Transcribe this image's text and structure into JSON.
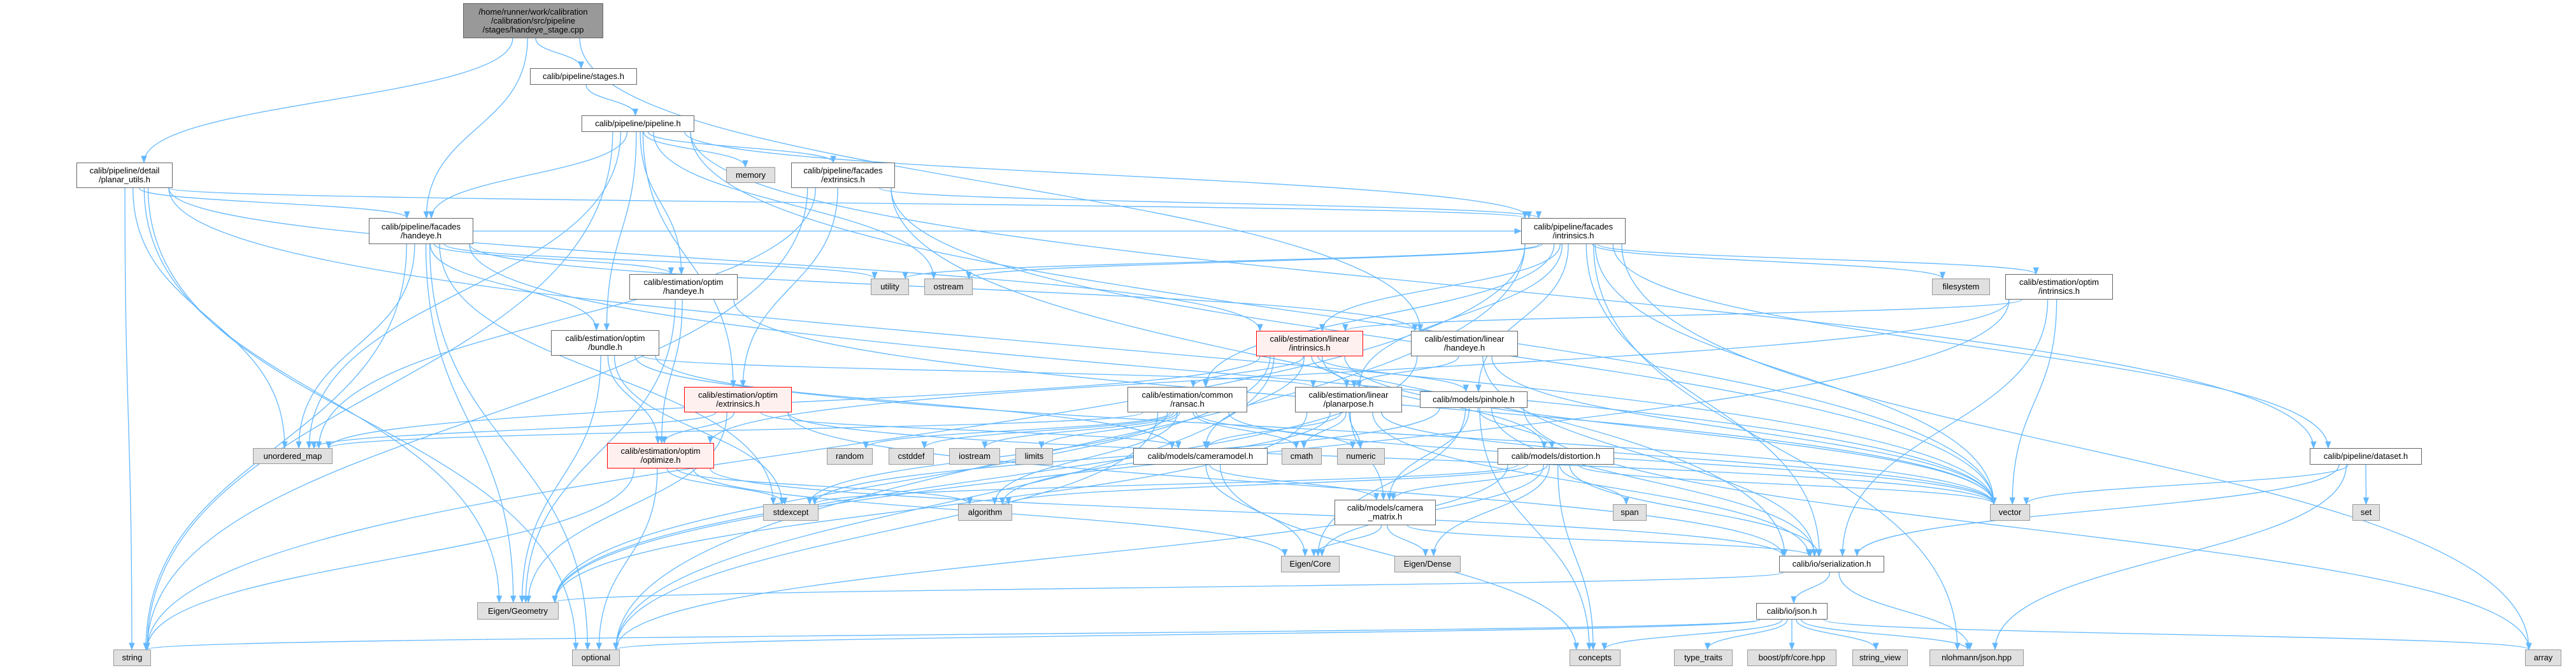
{
  "graph": {
    "edge_color": "#63b8ff",
    "nodes": [
      {
        "id": "root",
        "label": "/home/runner/work/calibration\n/calibration/src/pipeline\n/stages/handeye_stage.cpp",
        "kind": "root"
      },
      {
        "id": "stages",
        "label": "calib/pipeline/stages.h",
        "kind": "file"
      },
      {
        "id": "pipeline",
        "label": "calib/pipeline/pipeline.h",
        "kind": "file"
      },
      {
        "id": "planar_utils",
        "label": "calib/pipeline/detail\n/planar_utils.h",
        "kind": "file"
      },
      {
        "id": "fac_handeye",
        "label": "calib/pipeline/facades\n/handeye.h",
        "kind": "file"
      },
      {
        "id": "memory",
        "label": "memory",
        "kind": "std"
      },
      {
        "id": "fac_extr",
        "label": "calib/pipeline/facades\n/extrinsics.h",
        "kind": "file"
      },
      {
        "id": "fac_intr",
        "label": "calib/pipeline/facades\n/intrinsics.h",
        "kind": "file"
      },
      {
        "id": "optim_handeye",
        "label": "calib/estimation/optim\n/handeye.h",
        "kind": "file"
      },
      {
        "id": "utility",
        "label": "utility",
        "kind": "std"
      },
      {
        "id": "ostream",
        "label": "ostream",
        "kind": "std"
      },
      {
        "id": "filesystem",
        "label": "filesystem",
        "kind": "std"
      },
      {
        "id": "optim_intr",
        "label": "calib/estimation/optim\n/intrinsics.h",
        "kind": "file"
      },
      {
        "id": "bundle",
        "label": "calib/estimation/optim\n/bundle.h",
        "kind": "file"
      },
      {
        "id": "linear_intr",
        "label": "calib/estimation/linear\n/intrinsics.h",
        "kind": "red"
      },
      {
        "id": "linear_handeye",
        "label": "calib/estimation/linear\n/handeye.h",
        "kind": "file"
      },
      {
        "id": "optim_extr",
        "label": "calib/estimation/optim\n/extrinsics.h",
        "kind": "red"
      },
      {
        "id": "ransac",
        "label": "calib/estimation/common\n/ransac.h",
        "kind": "file"
      },
      {
        "id": "planarpose",
        "label": "calib/estimation/linear\n/planarpose.h",
        "kind": "file"
      },
      {
        "id": "pinhole",
        "label": "calib/models/pinhole.h",
        "kind": "file"
      },
      {
        "id": "unordered_map",
        "label": "unordered_map",
        "kind": "std"
      },
      {
        "id": "random",
        "label": "random",
        "kind": "std"
      },
      {
        "id": "cstddef",
        "label": "cstddef",
        "kind": "std"
      },
      {
        "id": "iostream",
        "label": "iostream",
        "kind": "std"
      },
      {
        "id": "limits",
        "label": "limits",
        "kind": "std"
      },
      {
        "id": "cameramodel",
        "label": "calib/models/cameramodel.h",
        "kind": "file"
      },
      {
        "id": "cmath",
        "label": "cmath",
        "kind": "std"
      },
      {
        "id": "numeric",
        "label": "numeric",
        "kind": "std"
      },
      {
        "id": "distortion",
        "label": "calib/models/distortion.h",
        "kind": "file"
      },
      {
        "id": "optimize",
        "label": "calib/estimation/optim\n/optimize.h",
        "kind": "red"
      },
      {
        "id": "vector",
        "label": "vector",
        "kind": "std"
      },
      {
        "id": "set",
        "label": "set",
        "kind": "std"
      },
      {
        "id": "dataset",
        "label": "calib/pipeline/dataset.h",
        "kind": "file"
      },
      {
        "id": "stdexcept",
        "label": "stdexcept",
        "kind": "std"
      },
      {
        "id": "algorithm",
        "label": "algorithm",
        "kind": "std"
      },
      {
        "id": "camera_matrix",
        "label": "calib/models/camera\n_matrix.h",
        "kind": "file"
      },
      {
        "id": "span",
        "label": "span",
        "kind": "std"
      },
      {
        "id": "eigen_geometry",
        "label": "Eigen/Geometry",
        "kind": "std"
      },
      {
        "id": "eigen_core",
        "label": "Eigen/Core",
        "kind": "std"
      },
      {
        "id": "eigen_dense",
        "label": "Eigen/Dense",
        "kind": "std"
      },
      {
        "id": "serialization",
        "label": "calib/io/serialization.h",
        "kind": "file"
      },
      {
        "id": "json_h",
        "label": "calib/io/json.h",
        "kind": "file"
      },
      {
        "id": "string",
        "label": "string",
        "kind": "std"
      },
      {
        "id": "optional",
        "label": "optional",
        "kind": "std"
      },
      {
        "id": "concepts",
        "label": "concepts",
        "kind": "std"
      },
      {
        "id": "type_traits",
        "label": "type_traits",
        "kind": "std"
      },
      {
        "id": "boost",
        "label": "boost/pfr/core.hpp",
        "kind": "std"
      },
      {
        "id": "string_view",
        "label": "string_view",
        "kind": "std"
      },
      {
        "id": "nlohmann",
        "label": "nlohmann/json.hpp",
        "kind": "std"
      },
      {
        "id": "array",
        "label": "array",
        "kind": "std"
      }
    ],
    "edges": [
      [
        "root",
        "stages"
      ],
      [
        "root",
        "planar_utils"
      ],
      [
        "root",
        "fac_handeye"
      ],
      [
        "root",
        "linear_handeye"
      ],
      [
        "stages",
        "pipeline"
      ],
      [
        "pipeline",
        "string"
      ],
      [
        "pipeline",
        "unordered_map"
      ],
      [
        "pipeline",
        "fac_handeye"
      ],
      [
        "pipeline",
        "fac_extr"
      ],
      [
        "pipeline",
        "memory"
      ],
      [
        "pipeline",
        "fac_intr"
      ],
      [
        "pipeline",
        "ostream"
      ],
      [
        "pipeline",
        "optim_handeye"
      ],
      [
        "pipeline",
        "bundle"
      ],
      [
        "pipeline",
        "dataset"
      ],
      [
        "pipeline",
        "vector"
      ],
      [
        "pipeline",
        "optim_extr"
      ],
      [
        "planar_utils",
        "fac_handeye"
      ],
      [
        "planar_utils",
        "fac_intr"
      ],
      [
        "planar_utils",
        "string"
      ],
      [
        "planar_utils",
        "unordered_map"
      ],
      [
        "planar_utils",
        "eigen_geometry"
      ],
      [
        "planar_utils",
        "optional"
      ],
      [
        "planar_utils",
        "vector"
      ],
      [
        "planar_utils",
        "linear_intr"
      ],
      [
        "fac_handeye",
        "fac_intr"
      ],
      [
        "fac_handeye",
        "linear_handeye"
      ],
      [
        "fac_handeye",
        "utility"
      ],
      [
        "fac_handeye",
        "bundle"
      ],
      [
        "fac_handeye",
        "optim_handeye"
      ],
      [
        "fac_handeye",
        "unordered_map"
      ],
      [
        "fac_handeye",
        "string"
      ],
      [
        "fac_handeye",
        "eigen_geometry"
      ],
      [
        "fac_handeye",
        "optional"
      ],
      [
        "fac_handeye",
        "stdexcept"
      ],
      [
        "fac_handeye",
        "vector"
      ],
      [
        "fac_extr",
        "fac_intr"
      ],
      [
        "fac_extr",
        "optim_extr"
      ],
      [
        "fac_extr",
        "unordered_map"
      ],
      [
        "fac_extr",
        "string"
      ],
      [
        "fac_extr",
        "vector"
      ],
      [
        "fac_extr",
        "serialization"
      ],
      [
        "fac_intr",
        "utility"
      ],
      [
        "fac_intr",
        "ostream"
      ],
      [
        "fac_intr",
        "filesystem"
      ],
      [
        "fac_intr",
        "optim_intr"
      ],
      [
        "fac_intr",
        "linear_intr"
      ],
      [
        "fac_intr",
        "ransac"
      ],
      [
        "fac_intr",
        "planarpose"
      ],
      [
        "fac_intr",
        "pinhole"
      ],
      [
        "fac_intr",
        "dataset"
      ],
      [
        "fac_intr",
        "serialization"
      ],
      [
        "fac_intr",
        "vector"
      ],
      [
        "fac_intr",
        "array"
      ],
      [
        "fac_intr",
        "nlohmann"
      ],
      [
        "fac_intr",
        "string"
      ],
      [
        "fac_intr",
        "optional"
      ],
      [
        "optim_handeye",
        "optimize"
      ],
      [
        "optim_handeye",
        "vector"
      ],
      [
        "optim_handeye",
        "eigen_geometry"
      ],
      [
        "bundle",
        "optimize"
      ],
      [
        "bundle",
        "planarpose"
      ],
      [
        "bundle",
        "cameramodel"
      ],
      [
        "bundle",
        "eigen_geometry"
      ],
      [
        "bundle",
        "vector"
      ],
      [
        "bundle",
        "stdexcept"
      ],
      [
        "optim_intr",
        "linear_intr"
      ],
      [
        "optim_intr",
        "optimize"
      ],
      [
        "optim_intr",
        "vector"
      ],
      [
        "optim_intr",
        "serialization"
      ],
      [
        "optim_intr",
        "eigen_geometry"
      ],
      [
        "linear_intr",
        "ransac"
      ],
      [
        "linear_intr",
        "planarpose"
      ],
      [
        "linear_intr",
        "distortion"
      ],
      [
        "linear_intr",
        "cameramodel"
      ],
      [
        "linear_intr",
        "pinhole"
      ],
      [
        "linear_intr",
        "eigen_geometry"
      ],
      [
        "linear_intr",
        "vector"
      ],
      [
        "linear_intr",
        "optional"
      ],
      [
        "linear_intr",
        "unordered_map"
      ],
      [
        "linear_handeye",
        "planarpose"
      ],
      [
        "linear_handeye",
        "vector"
      ],
      [
        "linear_handeye",
        "serialization"
      ],
      [
        "linear_handeye",
        "eigen_geometry"
      ],
      [
        "optim_extr",
        "optimize"
      ],
      [
        "optim_extr",
        "cameramodel"
      ],
      [
        "optim_extr",
        "eigen_geometry"
      ],
      [
        "optim_extr",
        "vector"
      ],
      [
        "optim_extr",
        "unordered_map"
      ],
      [
        "optim_extr",
        "serialization"
      ],
      [
        "ransac",
        "random"
      ],
      [
        "ransac",
        "cstddef"
      ],
      [
        "ransac",
        "iostream"
      ],
      [
        "ransac",
        "limits"
      ],
      [
        "ransac",
        "algorithm"
      ],
      [
        "ransac",
        "stdexcept"
      ],
      [
        "ransac",
        "cmath"
      ],
      [
        "ransac",
        "numeric"
      ],
      [
        "ransac",
        "optional"
      ],
      [
        "ransac",
        "vector"
      ],
      [
        "ransac",
        "unordered_map"
      ],
      [
        "planarpose",
        "cameramodel"
      ],
      [
        "planarpose",
        "cmath"
      ],
      [
        "planarpose",
        "numeric"
      ],
      [
        "planarpose",
        "camera_matrix"
      ],
      [
        "planarpose",
        "eigen_geometry"
      ],
      [
        "planarpose",
        "vector"
      ],
      [
        "planarpose",
        "algorithm"
      ],
      [
        "planarpose",
        "serialization"
      ],
      [
        "pinhole",
        "distortion"
      ],
      [
        "pinhole",
        "camera_matrix"
      ],
      [
        "pinhole",
        "eigen_core"
      ],
      [
        "pinhole",
        "stdexcept"
      ],
      [
        "pinhole",
        "concepts"
      ],
      [
        "pinhole",
        "serialization"
      ],
      [
        "pinhole",
        "array"
      ],
      [
        "optimize",
        "stdexcept"
      ],
      [
        "optimize",
        "algorithm"
      ],
      [
        "optimize",
        "eigen_core"
      ],
      [
        "optimize",
        "serialization"
      ],
      [
        "optimize",
        "string"
      ],
      [
        "optimize",
        "optional"
      ],
      [
        "cameramodel",
        "eigen_core"
      ],
      [
        "cameramodel",
        "camera_matrix"
      ],
      [
        "cameramodel",
        "concepts"
      ],
      [
        "distortion",
        "camera_matrix"
      ],
      [
        "distortion",
        "span"
      ],
      [
        "distortion",
        "eigen_core"
      ],
      [
        "distortion",
        "eigen_dense"
      ],
      [
        "distortion",
        "concepts"
      ],
      [
        "distortion",
        "serialization"
      ],
      [
        "distortion",
        "vector"
      ],
      [
        "distortion",
        "stdexcept"
      ],
      [
        "distortion",
        "algorithm"
      ],
      [
        "distortion",
        "optional"
      ],
      [
        "camera_matrix",
        "eigen_core"
      ],
      [
        "camera_matrix",
        "eigen_dense"
      ],
      [
        "camera_matrix",
        "serialization"
      ],
      [
        "serialization",
        "json_h"
      ],
      [
        "serialization",
        "nlohmann"
      ],
      [
        "serialization",
        "eigen_geometry"
      ],
      [
        "json_h",
        "concepts"
      ],
      [
        "json_h",
        "type_traits"
      ],
      [
        "json_h",
        "boost"
      ],
      [
        "json_h",
        "string_view"
      ],
      [
        "json_h",
        "nlohmann"
      ],
      [
        "json_h",
        "array"
      ],
      [
        "json_h",
        "string"
      ],
      [
        "json_h",
        "optional"
      ],
      [
        "dataset",
        "vector"
      ],
      [
        "dataset",
        "set"
      ],
      [
        "dataset",
        "serialization"
      ],
      [
        "dataset",
        "nlohmann"
      ]
    ]
  }
}
